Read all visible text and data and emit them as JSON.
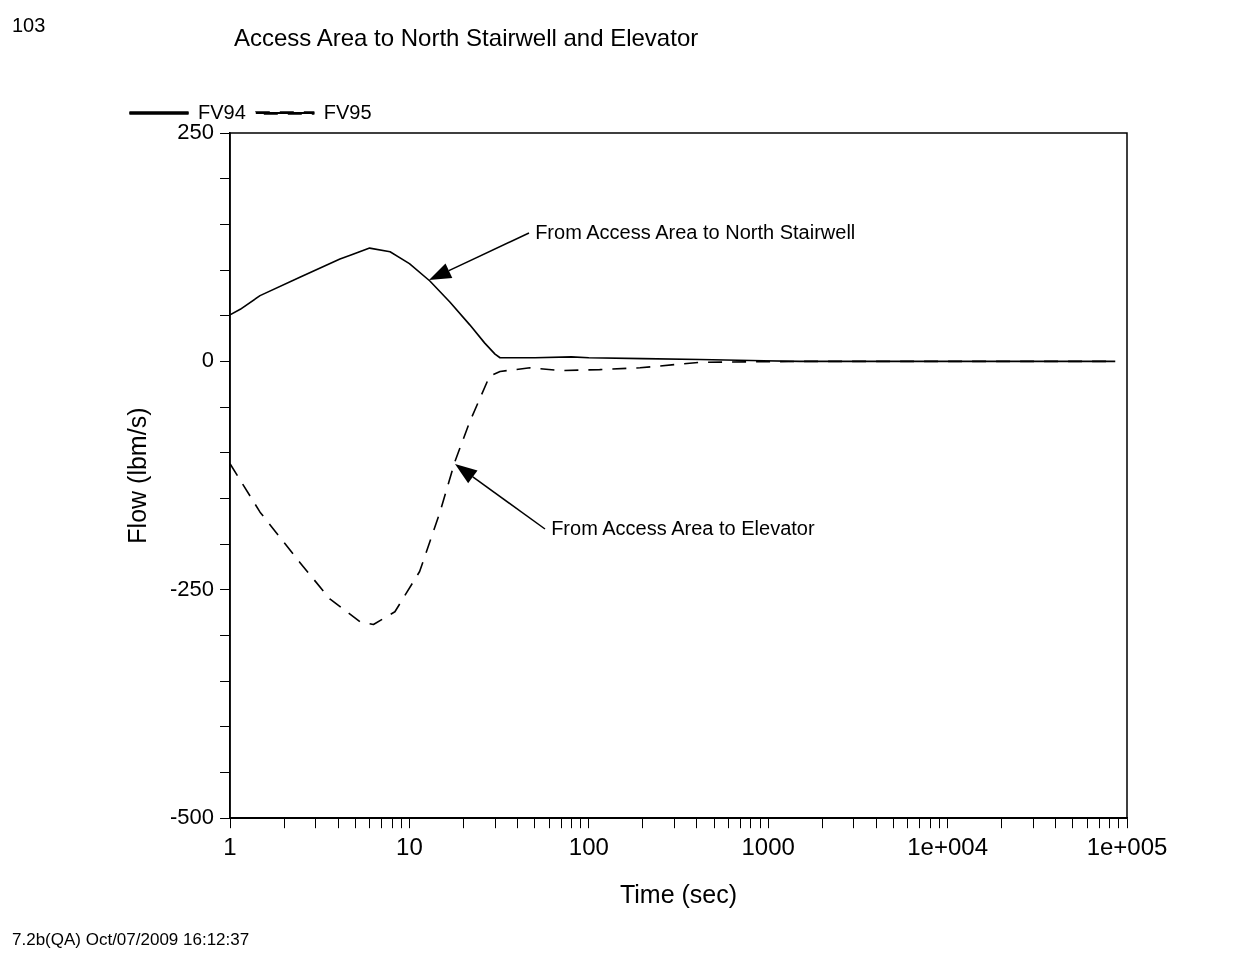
{
  "chart_data": {
    "type": "line",
    "title": "Access Area to North Stairwell and Elevator",
    "xlabel": "Time (sec)",
    "ylabel": "Flow (lbm/s)",
    "log": "x",
    "legend": "top left",
    "xlim": [
      1,
      100000
    ],
    "ylim": [
      -500,
      250
    ],
    "xticks": [
      {
        "value": 1,
        "label": "1"
      },
      {
        "value": 2,
        "label": null
      },
      {
        "value": 3,
        "label": null
      },
      {
        "value": 4,
        "label": null
      },
      {
        "value": 5,
        "label": null
      },
      {
        "value": 6,
        "label": null
      },
      {
        "value": 7,
        "label": null
      },
      {
        "value": 8,
        "label": null
      },
      {
        "value": 9,
        "label": null
      },
      {
        "value": 10,
        "label": "10"
      },
      {
        "value": 20,
        "label": null
      },
      {
        "value": 30,
        "label": null
      },
      {
        "value": 40,
        "label": null
      },
      {
        "value": 50,
        "label": null
      },
      {
        "value": 60,
        "label": null
      },
      {
        "value": 70,
        "label": null
      },
      {
        "value": 80,
        "label": null
      },
      {
        "value": 90,
        "label": null
      },
      {
        "value": 100,
        "label": "100"
      },
      {
        "value": 200,
        "label": null
      },
      {
        "value": 300,
        "label": null
      },
      {
        "value": 400,
        "label": null
      },
      {
        "value": 500,
        "label": null
      },
      {
        "value": 600,
        "label": null
      },
      {
        "value": 700,
        "label": null
      },
      {
        "value": 800,
        "label": null
      },
      {
        "value": 900,
        "label": null
      },
      {
        "value": 1000,
        "label": "1000"
      },
      {
        "value": 2000,
        "label": null
      },
      {
        "value": 3000,
        "label": null
      },
      {
        "value": 4000,
        "label": null
      },
      {
        "value": 5000,
        "label": null
      },
      {
        "value": 6000,
        "label": null
      },
      {
        "value": 7000,
        "label": null
      },
      {
        "value": 8000,
        "label": null
      },
      {
        "value": 9000,
        "label": null
      },
      {
        "value": 10000,
        "label": "1e+004"
      },
      {
        "value": 20000,
        "label": null
      },
      {
        "value": 30000,
        "label": null
      },
      {
        "value": 40000,
        "label": null
      },
      {
        "value": 50000,
        "label": null
      },
      {
        "value": 60000,
        "label": null
      },
      {
        "value": 70000,
        "label": null
      },
      {
        "value": 80000,
        "label": null
      },
      {
        "value": 90000,
        "label": null
      },
      {
        "value": 100000,
        "label": "1e+005"
      }
    ],
    "yticks": [
      -500,
      {
        "value": -450,
        "label": null
      },
      {
        "value": -400,
        "label": null
      },
      {
        "value": -350,
        "label": null
      },
      {
        "value": -300,
        "label": null
      },
      -250,
      {
        "value": -200,
        "label": null
      },
      {
        "value": -150,
        "label": null
      },
      {
        "value": -100,
        "label": null
      },
      {
        "value": -50,
        "label": null
      },
      0,
      {
        "value": 50,
        "label": null
      },
      {
        "value": 100,
        "label": null
      },
      {
        "value": 150,
        "label": null
      },
      {
        "value": 200,
        "label": null
      },
      250
    ],
    "series": [
      {
        "name": "FV94",
        "color": "#000000",
        "line_style": "solid",
        "x": [
          1,
          1.14,
          1.47,
          2.45,
          4.1,
          6,
          7.8,
          10,
          13,
          16.8,
          21.7,
          26.3,
          30,
          32,
          50,
          80,
          100,
          200,
          415,
          1500,
          10000,
          86000
        ],
        "values": [
          51,
          57,
          72,
          92,
          112,
          124,
          120,
          107,
          88,
          65,
          40,
          20,
          8,
          4,
          4,
          5,
          4,
          3,
          2,
          0,
          0,
          0
        ]
      },
      {
        "name": "FV95",
        "color": "#000000",
        "line_style": "dashed",
        "x": [
          1,
          1.47,
          2.45,
          3.6,
          5.3,
          6.3,
          8.3,
          11.4,
          14.8,
          17.9,
          21.7,
          28,
          32,
          47,
          69,
          115,
          193,
          415,
          1500,
          10000,
          86000
        ],
        "values": [
          -112,
          -165,
          -220,
          -260,
          -285,
          -288,
          -274,
          -230,
          -165,
          -110,
          -66,
          -16,
          -11,
          -7,
          -10,
          -9,
          -7,
          -1,
          0,
          0,
          0
        ]
      }
    ],
    "annotations": [
      "103",
      "From Access Area to North Stairwell",
      "From Access Area to Elevator",
      "7.2b(QA) Oct/07/2009 16:12:37"
    ]
  }
}
